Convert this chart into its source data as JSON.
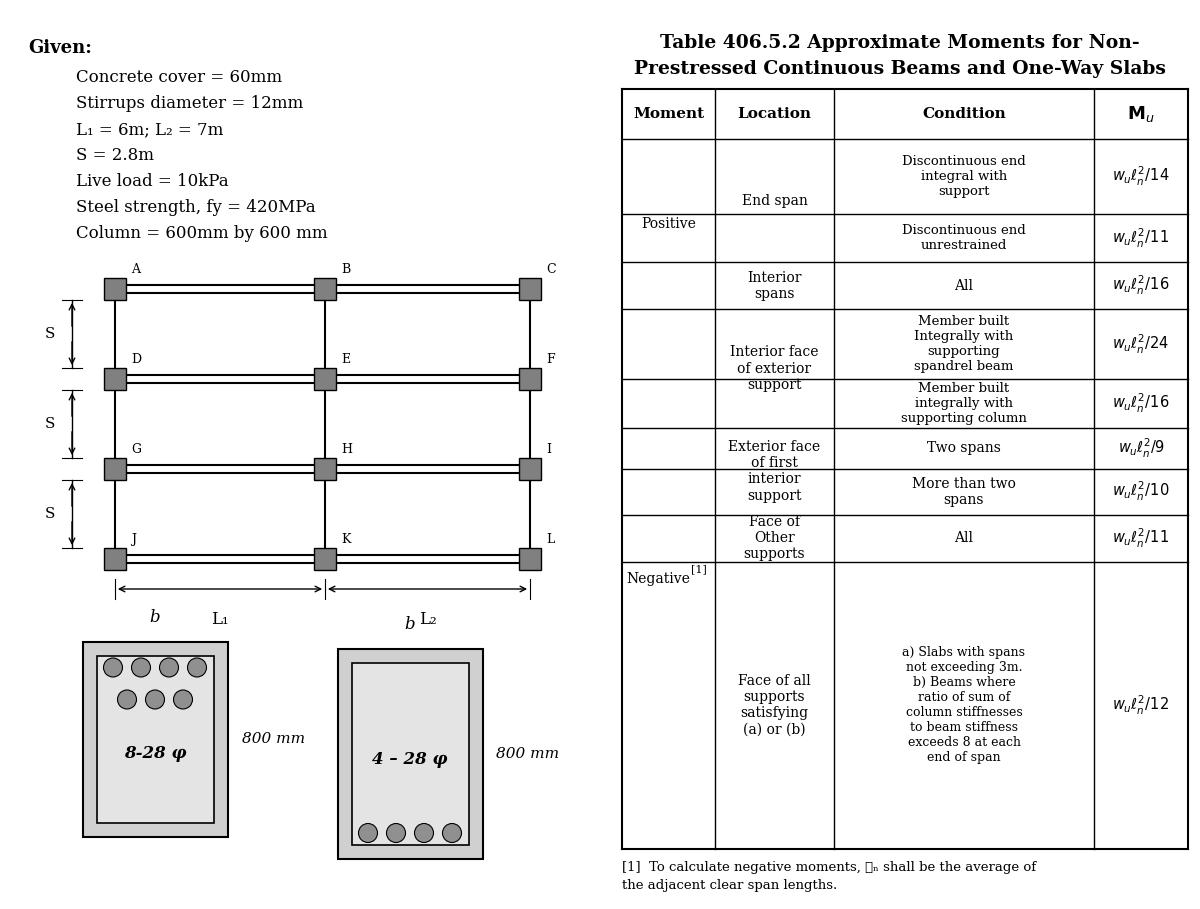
{
  "title_line1": "Table 406.5.2 Approximate Moments for Non-",
  "title_line2": "Prestressed Continuous Beams and One-Way Slabs",
  "given_lines": [
    "Given:",
    "Concrete cover = 60mm",
    "Stirrups diameter = 12mm",
    "L₁ = 6m; L₂ = 7m",
    "S = 2.8m",
    "Live load = 10kPa",
    "Steel strength, fy = 420MPa",
    "Column = 600mm by 600 mm"
  ],
  "footnote_line1": "[1]  To calculate negative moments, ℓₙ shall be the average of",
  "footnote_line2": "the adjacent clear span lengths.",
  "bg_color": "#ffffff",
  "beam_color": "#808080",
  "node_labels": [
    [
      "A",
      "B",
      "C"
    ],
    [
      "D",
      "E",
      "F"
    ],
    [
      "G",
      "H",
      "I"
    ],
    [
      "J",
      "K",
      "L"
    ]
  ],
  "span_labels": [
    "L₁",
    "L₂"
  ],
  "section_label": "S",
  "cs1_label": "8-28 φ",
  "cs2_label": "4 – 28 φ",
  "dim_label": "800 mm",
  "b_label": "b"
}
